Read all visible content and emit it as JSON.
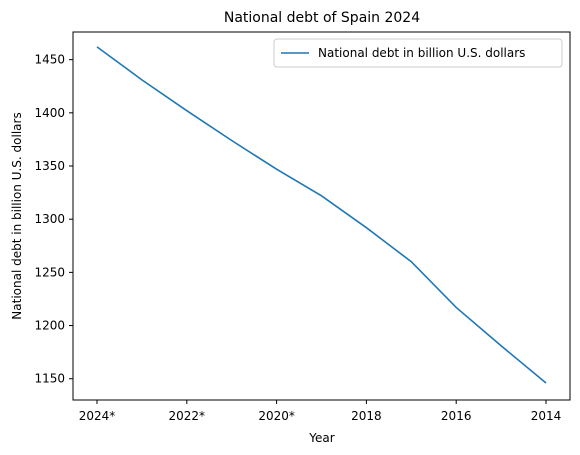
{
  "chart_data": {
    "type": "line",
    "title": "National debt of Spain 2024",
    "xlabel": "Year",
    "ylabel": "National debt in billion U.S. dollars",
    "categories": [
      "2024*",
      "2023*",
      "2022*",
      "2021*",
      "2020*",
      "2019",
      "2018",
      "2017",
      "2016",
      "2015",
      "2014"
    ],
    "x_tick_labels": [
      "2024*",
      "2022*",
      "2020*",
      "2018",
      "2016",
      "2014"
    ],
    "series": [
      {
        "name": "National debt in billion U.S. dollars",
        "color": "#1f77b4",
        "values": [
          1462,
          1431,
          1402,
          1374,
          1347,
          1322,
          1292,
          1260,
          1217,
          1181,
          1146
        ]
      }
    ],
    "ylim": [
      1130,
      1476
    ],
    "y_ticks": [
      1150,
      1200,
      1250,
      1300,
      1350,
      1400,
      1450
    ],
    "grid": false,
    "legend_position": "top-right"
  }
}
